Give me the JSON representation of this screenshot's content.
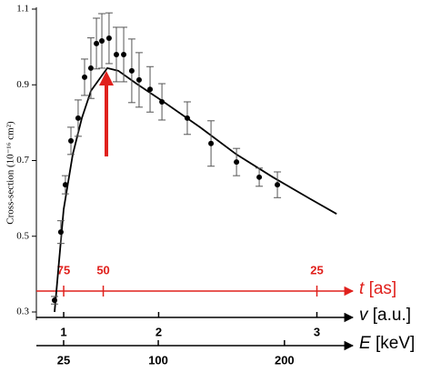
{
  "chart_data": {
    "type": "scatter",
    "y_label": "Cross-section (10⁻¹⁶ cm²)",
    "ylim": [
      0.3,
      1.1
    ],
    "yticks": [
      0.3,
      0.5,
      0.7,
      0.9,
      1.1
    ],
    "x_axes": [
      {
        "symbol": "t",
        "unit": "[as]",
        "color": "#e0211d",
        "scale": "inverse-square",
        "xlim": [
          202.7,
          23.66
        ],
        "xticks": [
          75,
          50,
          25
        ]
      },
      {
        "symbol": "v",
        "unit": "[a.u.]",
        "color": "#000000",
        "scale": "square",
        "xlim": [
          0.37,
          3.17
        ],
        "xticks": [
          1,
          2,
          3
        ]
      },
      {
        "symbol": "E",
        "unit": "[keV]",
        "color": "#000000",
        "scale": "linear",
        "xlim": [
          3.4,
          252
        ],
        "xticks": [
          25,
          100,
          200
        ]
      }
    ],
    "points": {
      "color": "#000000",
      "x": [
        17.8,
        22.8,
        26.4,
        30.8,
        36.5,
        41.6,
        46.6,
        51,
        55.3,
        61,
        66.8,
        72.6,
        79,
        84.8,
        93.5,
        102.9,
        123,
        141.8,
        162,
        180,
        194.4
      ],
      "values": [
        0.331,
        0.511,
        0.636,
        0.752,
        0.812,
        0.92,
        0.944,
        1.009,
        1.016,
        1.023,
        0.98,
        0.98,
        0.937,
        0.913,
        0.888,
        0.855,
        0.812,
        0.745,
        0.696,
        0.656,
        0.636
      ],
      "errors": [
        0.01,
        0.03,
        0.024,
        0.036,
        0.048,
        0.048,
        0.08,
        0.067,
        0.072,
        0.067,
        0.072,
        0.072,
        0.084,
        0.072,
        0.06,
        0.048,
        0.043,
        0.06,
        0.036,
        0.024,
        0.034
      ]
    },
    "fit": {
      "color": "#000000",
      "x": [
        17.8,
        25,
        32.2,
        39.4,
        46.6,
        59.6,
        68.3,
        82.7,
        104.3,
        133.1,
        162,
        190.8,
        219.7,
        241.3
      ],
      "values": [
        0.3,
        0.571,
        0.716,
        0.812,
        0.884,
        0.944,
        0.937,
        0.903,
        0.855,
        0.788,
        0.716,
        0.656,
        0.6,
        0.559
      ]
    }
  }
}
